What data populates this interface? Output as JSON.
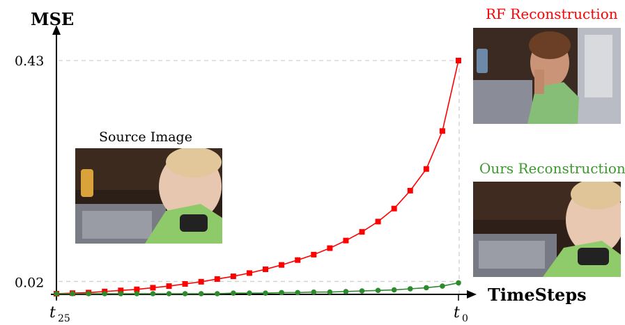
{
  "chart_data": {
    "type": "line",
    "ylabel": "MSE",
    "xlabel": "TimeSteps",
    "x_tick_labels": [
      {
        "base": "t",
        "sub": "25"
      },
      {
        "base": "t",
        "sub": "0"
      }
    ],
    "y_tick_labels": [
      "0.43",
      "0.02"
    ],
    "ylim": [
      0.0,
      0.43
    ],
    "x": [
      25,
      24,
      23,
      22,
      21,
      20,
      19,
      18,
      17,
      16,
      15,
      14,
      13,
      12,
      11,
      10,
      9,
      8,
      7,
      6,
      5,
      4,
      3,
      2,
      1,
      0
    ],
    "series": [
      {
        "name": "RF Reconstruction",
        "color": "#ff0000",
        "marker": "square",
        "values": [
          0.0,
          0.001,
          0.002,
          0.004,
          0.006,
          0.008,
          0.011,
          0.014,
          0.018,
          0.022,
          0.027,
          0.032,
          0.038,
          0.045,
          0.053,
          0.062,
          0.072,
          0.084,
          0.098,
          0.114,
          0.133,
          0.157,
          0.19,
          0.23,
          0.3,
          0.43
        ]
      },
      {
        "name": "Ours Reconstruction",
        "color": "#2d8a2d",
        "marker": "circle",
        "values": [
          0.0,
          0.0,
          0.0,
          0.0,
          0.0,
          0.0,
          0.0,
          0.0,
          0.0,
          0.0,
          0.0,
          0.001,
          0.001,
          0.001,
          0.002,
          0.002,
          0.003,
          0.003,
          0.004,
          0.005,
          0.006,
          0.007,
          0.009,
          0.011,
          0.014,
          0.02
        ]
      }
    ],
    "grid": false,
    "legend": "none"
  },
  "images": {
    "source": {
      "caption": "Source Image",
      "caption_color": "#000000"
    },
    "rf": {
      "caption": "RF Reconstruction",
      "caption_color": "#ff0000"
    },
    "ours": {
      "caption": "Ours Reconstruction",
      "caption_color": "#3a9a2a"
    }
  }
}
